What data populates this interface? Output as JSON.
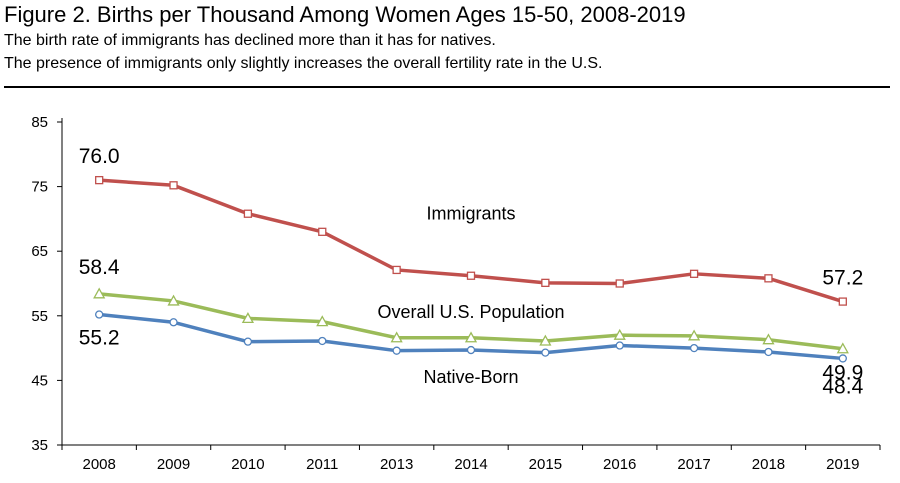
{
  "header": {
    "title": "Figure 2. Births per Thousand Among Women Ages 15-50, 2008-2019",
    "subtitle_1": "The birth rate of immigrants has declined more than it has for natives.",
    "subtitle_2": "The presence of immigrants only slightly increases the overall fertility rate in the U.S."
  },
  "chart_data": {
    "type": "line",
    "title": "Figure 2. Births per Thousand Among Women Ages 15-50, 2008-2019",
    "xlabel": "",
    "ylabel": "",
    "categories": [
      "2008",
      "2009",
      "2010",
      "2011",
      "2013",
      "2014",
      "2015",
      "2016",
      "2017",
      "2018",
      "2019"
    ],
    "ylim": [
      35,
      85
    ],
    "yticks": [
      35,
      45,
      55,
      65,
      75,
      85
    ],
    "grid": false,
    "series": [
      {
        "name": "Immigrants",
        "color": "#c0504d",
        "marker": "square",
        "values": [
          76.0,
          75.2,
          70.8,
          68.0,
          62.1,
          61.2,
          60.1,
          60.0,
          61.5,
          60.8,
          57.2
        ],
        "start_label": "76.0",
        "end_label": "57.2"
      },
      {
        "name": "Overall U.S. Population",
        "color": "#9bbb59",
        "marker": "triangle",
        "values": [
          58.4,
          57.3,
          54.6,
          54.1,
          51.6,
          51.6,
          51.1,
          52.0,
          51.9,
          51.3,
          49.9
        ],
        "start_label": "58.4",
        "end_label": "49.9"
      },
      {
        "name": "Native-Born",
        "color": "#4f81bd",
        "marker": "circle",
        "values": [
          55.2,
          54.0,
          51.0,
          51.1,
          49.6,
          49.7,
          49.3,
          50.4,
          50.0,
          49.4,
          48.4
        ],
        "start_label": "55.2",
        "end_label": "48.4"
      }
    ]
  }
}
